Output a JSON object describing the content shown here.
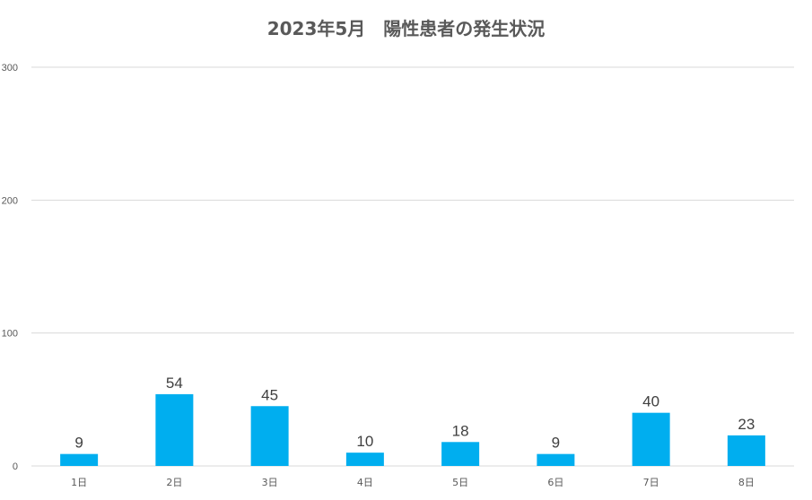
{
  "chart_data": {
    "type": "bar",
    "title": "2023年5月　陽性患者の発生状況",
    "categories": [
      "1日",
      "2日",
      "3日",
      "4日",
      "5日",
      "6日",
      "7日",
      "8日"
    ],
    "values": [
      9,
      54,
      45,
      10,
      18,
      9,
      40,
      23
    ],
    "ylim": [
      0,
      300
    ],
    "yticks": [
      0,
      100,
      200,
      300
    ],
    "grid": true,
    "legend": "none",
    "data_labels": true,
    "bar_color": "#00AEEF",
    "grid_color": "#D9D9D9",
    "text_color": "#595959"
  }
}
